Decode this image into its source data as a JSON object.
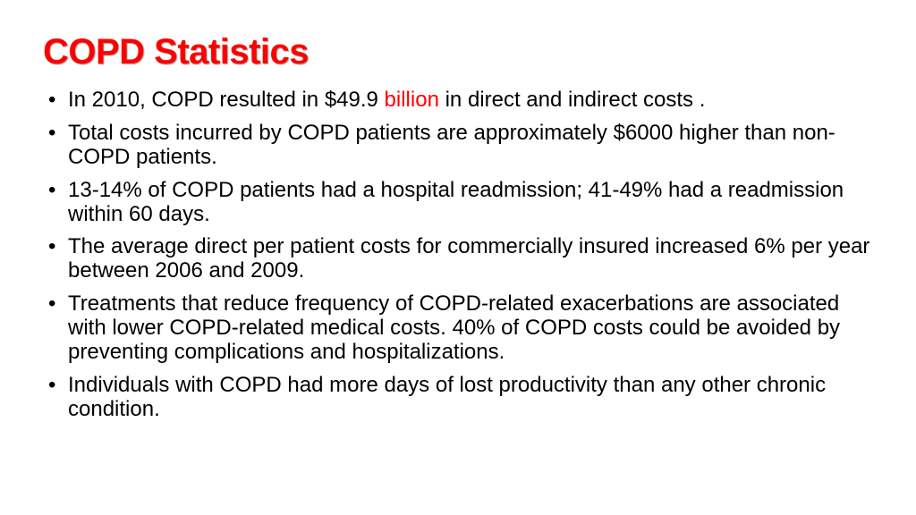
{
  "slide": {
    "title": "COPD Statistics",
    "title_color": "#ff0000",
    "title_fontsize": 40,
    "title_fontweight": 900,
    "background_color": "#ffffff",
    "body_color": "#000000",
    "body_fontsize": 24,
    "highlight_color": "#ff0000",
    "bullets": [
      {
        "pre": "In 2010, COPD resulted in $49.9 ",
        "highlight": "billion",
        "post": " in direct and indirect costs ."
      },
      {
        "pre": "Total costs incurred by COPD patients are approximately $6000 higher than non-COPD patients.",
        "highlight": "",
        "post": ""
      },
      {
        "pre": "13-14% of COPD patients had a hospital readmission; 41-49% had a readmission within 60 days.",
        "highlight": "",
        "post": ""
      },
      {
        "pre": "The average direct per patient costs for commercially insured increased 6% per year between 2006 and 2009.",
        "highlight": "",
        "post": ""
      },
      {
        "pre": "Treatments that reduce frequency of COPD-related exacerbations are associated with lower COPD-related medical costs. 40% of COPD costs could be avoided by preventing complications and hospitalizations.",
        "highlight": "",
        "post": ""
      },
      {
        "pre": "Individuals with COPD had more days of lost productivity than any other chronic condition.",
        "highlight": "",
        "post": ""
      }
    ]
  }
}
